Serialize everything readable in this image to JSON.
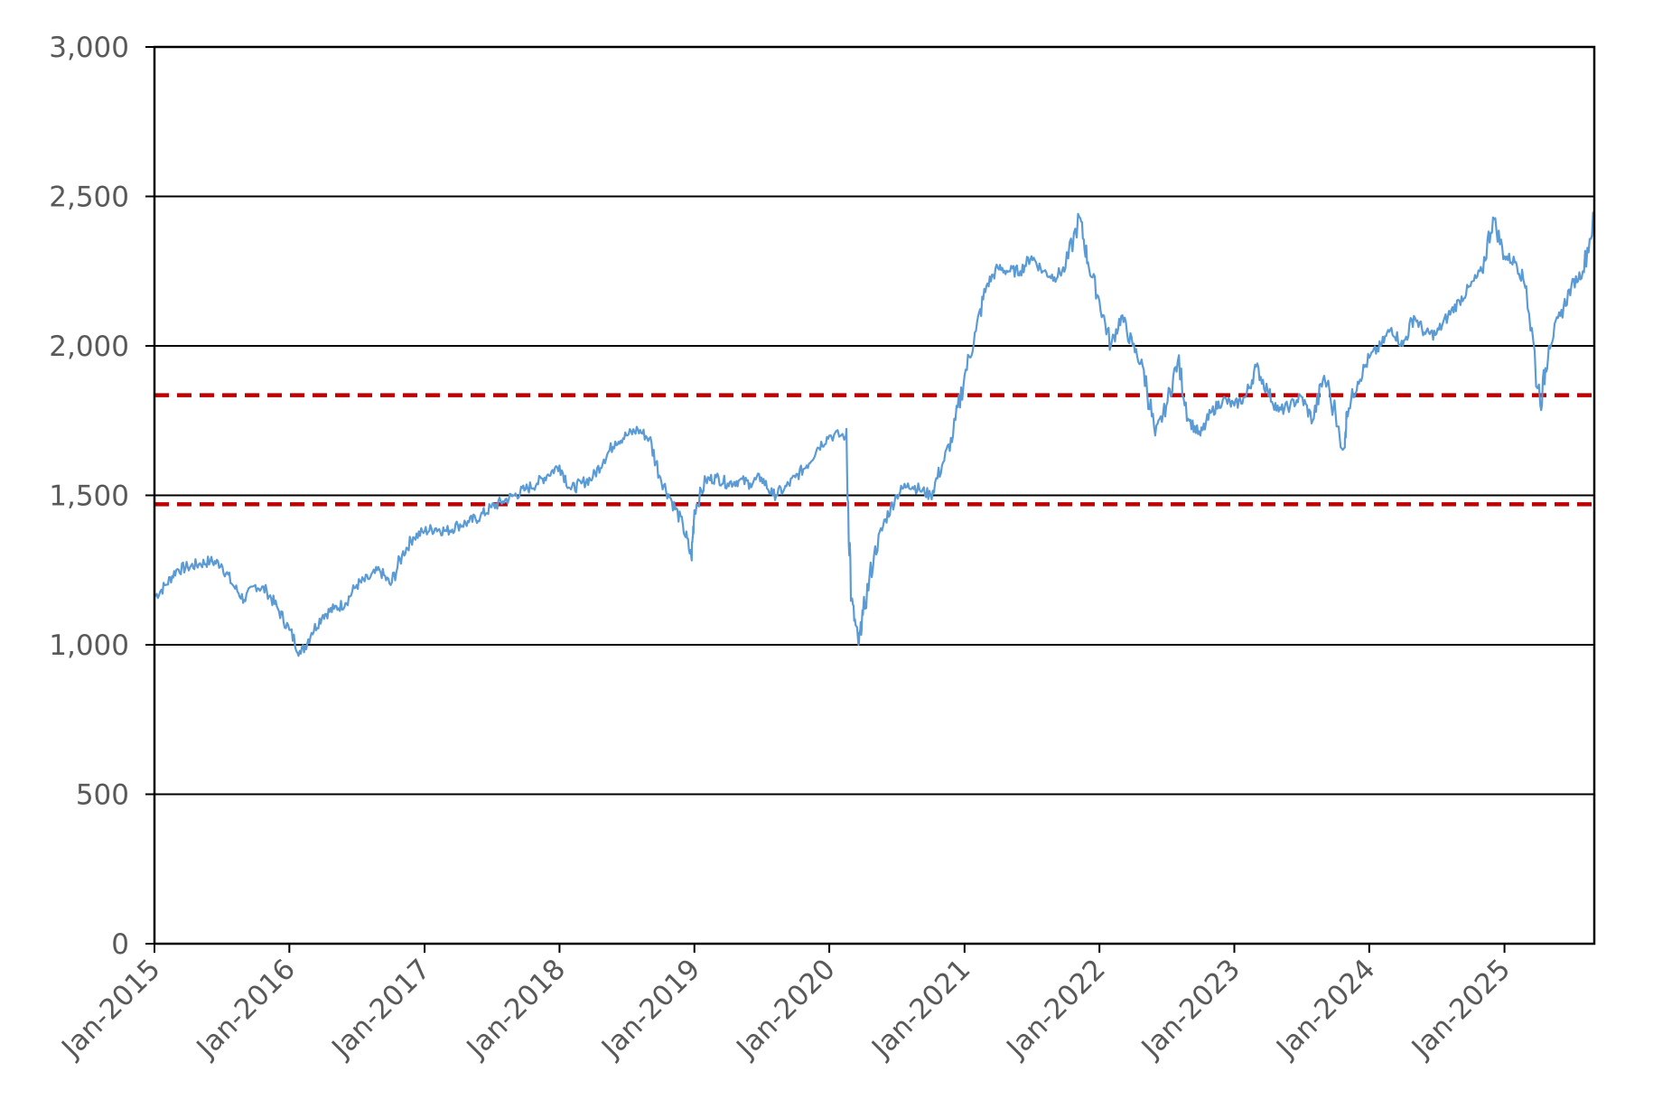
{
  "chart_data": {
    "type": "line",
    "title": "",
    "xlabel": "",
    "ylabel": "",
    "ylim": [
      0,
      3000
    ],
    "xlim": [
      "2015-01",
      "2025-09"
    ],
    "y_ticks": [
      "0",
      "500",
      "1,000",
      "1,500",
      "2,000",
      "2,500",
      "3,000"
    ],
    "y_tick_values": [
      0,
      500,
      1000,
      1500,
      2000,
      2500,
      3000
    ],
    "x_tick_labels": [
      "Jan-2015",
      "Jan-2016",
      "Jan-2017",
      "Jan-2018",
      "Jan-2019",
      "Jan-2020",
      "Jan-2021",
      "Jan-2022",
      "Jan-2023",
      "Jan-2024",
      "Jan-2025"
    ],
    "grid": true,
    "legend": "none",
    "series_color": "#5b9bd5",
    "reference_lines": [
      {
        "value": 1835,
        "style": "dashed",
        "color": "#c00000"
      },
      {
        "value": 1470,
        "style": "dashed",
        "color": "#c00000"
      }
    ],
    "series": [
      {
        "x": [
          "2015-01-01",
          "2015-02-01",
          "2015-03-01",
          "2015-04-01",
          "2015-05-01",
          "2015-06-01",
          "2015-07-01",
          "2015-08-01",
          "2015-09-01",
          "2015-10-01",
          "2015-11-01",
          "2015-12-01",
          "2016-01-01",
          "2016-02-01",
          "2016-03-01",
          "2016-04-01",
          "2016-05-01",
          "2016-06-01",
          "2016-07-01",
          "2016-08-01",
          "2016-09-01",
          "2016-10-01",
          "2016-11-01",
          "2016-12-01",
          "2017-01-01",
          "2017-02-01",
          "2017-03-01",
          "2017-04-01",
          "2017-05-01",
          "2017-06-01",
          "2017-07-01",
          "2017-08-01",
          "2017-09-01",
          "2017-10-01",
          "2017-11-01",
          "2017-12-01",
          "2018-01-01",
          "2018-02-01",
          "2018-03-01",
          "2018-04-01",
          "2018-05-01",
          "2018-06-01",
          "2018-07-01",
          "2018-08-01",
          "2018-09-01",
          "2018-10-01",
          "2018-11-01",
          "2018-12-01",
          "2018-12-24",
          "2019-01-01",
          "2019-02-01",
          "2019-03-01",
          "2019-04-01",
          "2019-05-01",
          "2019-06-01",
          "2019-07-01",
          "2019-08-01",
          "2019-09-01",
          "2019-10-01",
          "2019-11-01",
          "2019-12-01",
          "2020-01-01",
          "2020-02-15",
          "2020-03-01",
          "2020-03-20",
          "2020-04-01",
          "2020-05-01",
          "2020-06-01",
          "2020-07-01",
          "2020-08-01",
          "2020-09-01",
          "2020-10-01",
          "2020-11-01",
          "2020-12-01",
          "2021-01-01",
          "2021-02-01",
          "2021-03-01",
          "2021-04-01",
          "2021-05-01",
          "2021-06-01",
          "2021-07-01",
          "2021-08-01",
          "2021-09-01",
          "2021-10-01",
          "2021-11-08",
          "2021-12-01",
          "2022-01-01",
          "2022-02-01",
          "2022-03-01",
          "2022-04-01",
          "2022-05-01",
          "2022-06-01",
          "2022-07-01",
          "2022-08-01",
          "2022-09-01",
          "2022-10-01",
          "2022-11-01",
          "2022-12-01",
          "2023-01-01",
          "2023-02-01",
          "2023-03-01",
          "2023-04-01",
          "2023-05-01",
          "2023-06-01",
          "2023-07-01",
          "2023-08-01",
          "2023-09-01",
          "2023-10-27",
          "2023-11-01",
          "2023-12-01",
          "2024-01-01",
          "2024-02-01",
          "2024-03-01",
          "2024-04-01",
          "2024-05-01",
          "2024-06-01",
          "2024-07-01",
          "2024-08-01",
          "2024-09-01",
          "2024-10-01",
          "2024-11-01",
          "2024-12-01",
          "2025-01-01",
          "2025-02-01",
          "2025-03-01",
          "2025-04-08",
          "2025-05-01",
          "2025-06-01",
          "2025-07-01",
          "2025-08-01",
          "2025-09-01"
        ],
        "values": [
          1160,
          1200,
          1250,
          1260,
          1270,
          1280,
          1270,
          1200,
          1150,
          1200,
          1180,
          1120,
          1050,
          970,
          1040,
          1100,
          1120,
          1140,
          1200,
          1220,
          1250,
          1200,
          1300,
          1360,
          1380,
          1390,
          1380,
          1400,
          1410,
          1430,
          1460,
          1480,
          1500,
          1520,
          1540,
          1570,
          1600,
          1520,
          1540,
          1560,
          1620,
          1680,
          1700,
          1720,
          1690,
          1560,
          1480,
          1400,
          1290,
          1450,
          1550,
          1560,
          1540,
          1550,
          1540,
          1560,
          1500,
          1520,
          1560,
          1600,
          1660,
          1700,
          1700,
          1150,
          1000,
          1100,
          1300,
          1420,
          1500,
          1540,
          1520,
          1500,
          1600,
          1700,
          1900,
          2050,
          2200,
          2260,
          2250,
          2250,
          2300,
          2250,
          2230,
          2260,
          2430,
          2280,
          2150,
          2000,
          2100,
          2000,
          1920,
          1700,
          1800,
          1950,
          1750,
          1700,
          1780,
          1820,
          1800,
          1830,
          1930,
          1850,
          1780,
          1800,
          1830,
          1750,
          1900,
          1660,
          1780,
          1880,
          1960,
          2000,
          2060,
          2000,
          2100,
          2040,
          2040,
          2100,
          2150,
          2200,
          2250,
          2430,
          2300,
          2280,
          2200,
          1800,
          2000,
          2100,
          2200,
          2250,
          2430
        ]
      }
    ]
  }
}
